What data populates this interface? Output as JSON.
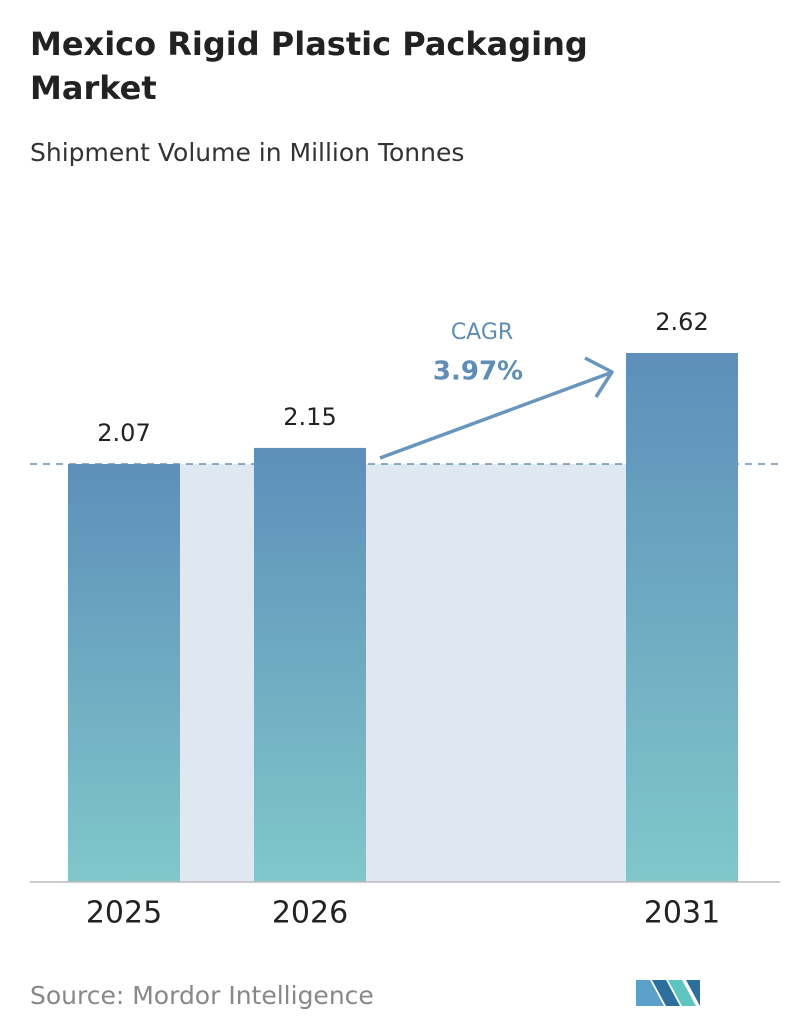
{
  "chart_data": {
    "type": "bar",
    "title": "Mexico Rigid Plastic Packaging Market",
    "subtitle": "Shipment Volume in Million Tonnes",
    "categories": [
      "2025",
      "2026",
      "2031"
    ],
    "values": [
      2.07,
      2.15,
      2.62
    ],
    "annotations": {
      "cagr_label": "CAGR",
      "cagr_value": "3.97%"
    },
    "source": "Source:  Mordor Intelligence"
  }
}
